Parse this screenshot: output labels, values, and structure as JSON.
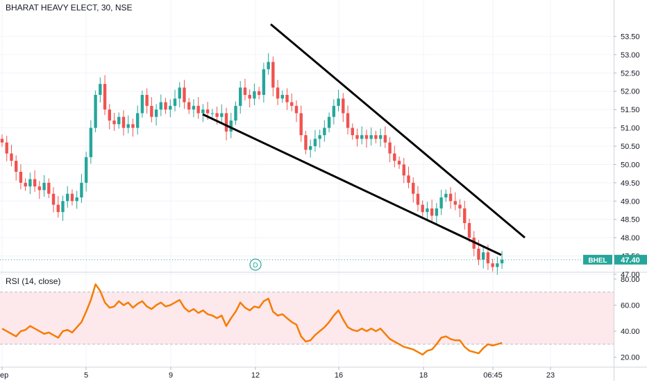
{
  "header": {
    "symbol_title": "BHARAT HEAVY ELECT, 30, NSE"
  },
  "rsi_panel": {
    "title": "RSI (14, close)"
  },
  "colors": {
    "up": "#26a69a",
    "down": "#ef5350",
    "rsi_line": "#f57c00",
    "rsi_band": "#fde8ec",
    "price_tag": "#26a69a",
    "trendline": "#000000",
    "grid": "#f0f3fa",
    "axis_text": "#131722"
  },
  "chart_data": [
    {
      "type": "candlestick",
      "title": "BHARAT HEAVY ELECT, 30, NSE",
      "ylim": [
        46.6,
        53.7
      ],
      "y_ticks": [
        47.0,
        47.5,
        48.0,
        48.5,
        49.0,
        49.5,
        50.0,
        50.5,
        51.0,
        51.5,
        52.0,
        52.5,
        53.0,
        53.5
      ],
      "x_ticks": [
        "ep",
        "5",
        "9",
        "12",
        "16",
        "18",
        "06:45",
        "23"
      ],
      "grid": true,
      "last_price": {
        "label": "BHEL",
        "value": "47.40"
      },
      "marker": {
        "label": "D"
      },
      "closes": [
        50.6,
        50.3,
        50.1,
        49.8,
        49.5,
        49.4,
        49.6,
        49.4,
        49.3,
        49.5,
        49.2,
        48.9,
        48.7,
        49.0,
        49.2,
        49.0,
        49.1,
        49.5,
        50.2,
        51.0,
        51.9,
        52.2,
        51.5,
        51.2,
        51.1,
        51.3,
        51.0,
        51.1,
        51.0,
        51.4,
        51.9,
        51.6,
        51.3,
        51.5,
        51.7,
        51.5,
        51.6,
        51.8,
        52.1,
        51.7,
        51.5,
        51.6,
        51.4,
        51.5,
        51.4,
        51.4,
        51.3,
        51.4,
        50.9,
        51.2,
        51.6,
        52.1,
        51.9,
        51.8,
        52.0,
        51.9,
        52.6,
        52.8,
        52.1,
        51.8,
        51.9,
        51.7,
        51.6,
        51.4,
        50.8,
        50.4,
        50.5,
        50.7,
        50.8,
        51.0,
        51.3,
        51.6,
        51.8,
        51.4,
        51.0,
        50.8,
        50.7,
        50.8,
        50.7,
        50.8,
        50.7,
        50.8,
        50.6,
        50.3,
        50.1,
        50.0,
        49.7,
        49.5,
        49.2,
        48.9,
        48.7,
        48.8,
        48.6,
        48.8,
        49.1,
        49.2,
        49.0,
        48.9,
        48.8,
        48.4,
        48.0,
        47.7,
        47.4,
        47.6,
        47.3,
        47.2,
        47.3,
        47.4
      ],
      "rsi": {
        "ylim": [
          15,
          85
        ],
        "y_ticks": [
          20.0,
          40.0,
          60.0,
          80.0
        ],
        "band": [
          30,
          70
        ],
        "values": [
          42,
          40,
          38,
          36,
          40,
          41,
          44,
          42,
          40,
          38,
          39,
          37,
          35,
          40,
          41,
          39,
          43,
          47,
          55,
          64,
          76,
          71,
          62,
          58,
          59,
          63,
          60,
          62,
          58,
          61,
          63,
          59,
          57,
          60,
          62,
          59,
          60,
          62,
          64,
          58,
          55,
          57,
          54,
          56,
          53,
          52,
          50,
          52,
          44,
          50,
          55,
          62,
          58,
          56,
          59,
          58,
          63,
          65,
          55,
          52,
          53,
          50,
          47,
          45,
          36,
          32,
          33,
          37,
          40,
          43,
          47,
          52,
          56,
          49,
          43,
          41,
          40,
          42,
          40,
          42,
          40,
          42,
          38,
          34,
          32,
          30,
          28,
          27,
          26,
          24,
          22,
          25,
          26,
          30,
          35,
          36,
          34,
          33,
          33,
          28,
          25,
          24,
          23,
          27,
          30,
          29,
          30,
          31
        ]
      }
    }
  ]
}
